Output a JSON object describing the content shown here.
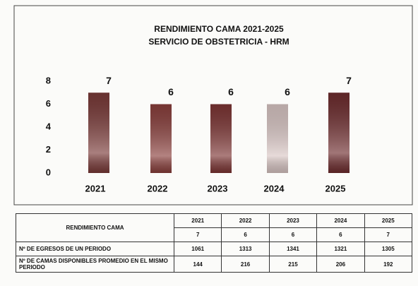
{
  "chart_data": {
    "type": "bar",
    "title": "RENDIMIENTO CAMA 2021-2025",
    "subtitle": "SERVICIO DE OBSTETRICIA - HRM",
    "categories": [
      "2021",
      "2022",
      "2023",
      "2024",
      "2025"
    ],
    "values": [
      7,
      6,
      6,
      6,
      7
    ],
    "colors": [
      "#7a3a38",
      "#8a3f3c",
      "#7d3534",
      "#d9c6c4",
      "#6e2c2e"
    ],
    "ylim": [
      0,
      8
    ],
    "yticks": [
      0,
      2,
      4,
      6,
      8
    ],
    "grid": false
  },
  "table": {
    "header_label": "RENDIMIENTO CAMA",
    "years": [
      "2021",
      "2022",
      "2023",
      "2024",
      "2025"
    ],
    "rendimiento": [
      7,
      6,
      6,
      6,
      7
    ],
    "rows": [
      {
        "label": "Nº DE EGRESOS DE UN PERIODO",
        "values": [
          1061,
          1313,
          1341,
          1321,
          1305
        ]
      },
      {
        "label": "Nº DE CAMAS DISPONIBLES PROMEDIO EN EL MISMO PERIODO",
        "values": [
          144,
          216,
          215,
          206,
          192
        ]
      }
    ]
  }
}
